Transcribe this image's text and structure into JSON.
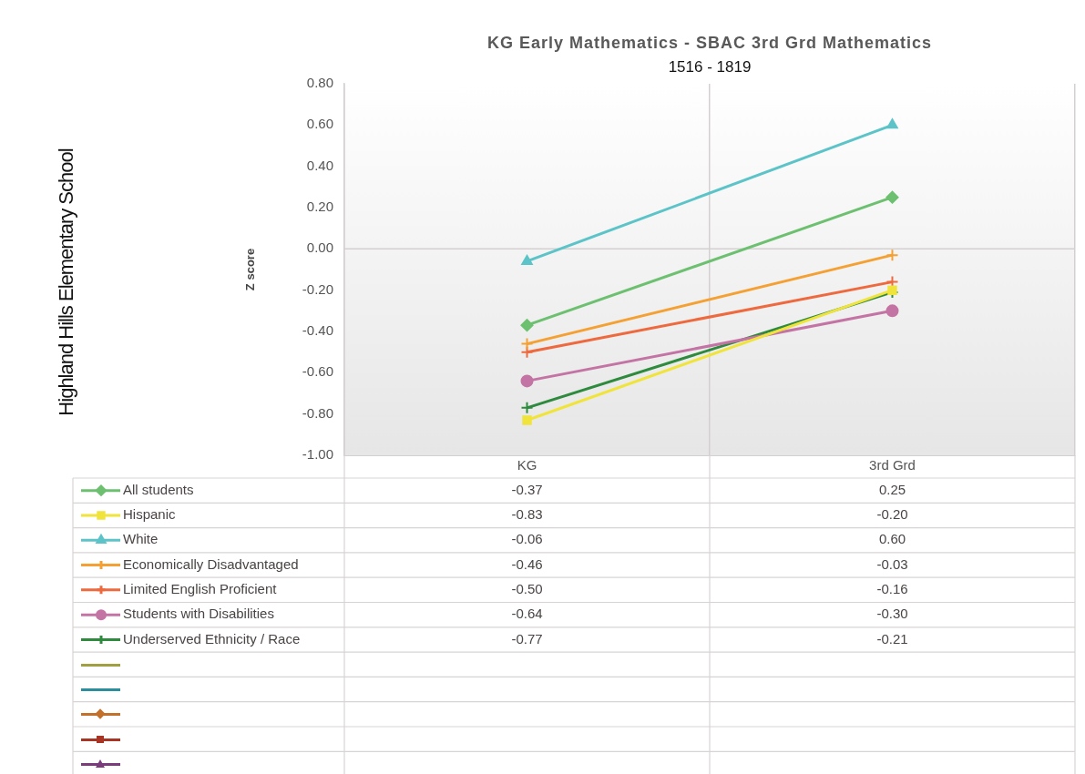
{
  "chart_data": {
    "type": "line",
    "title": "KG Early Mathematics - SBAC 3rd Grd Mathematics",
    "subtitle": "1516 - 1819",
    "ylabel": "Z score",
    "annotations": [
      "Highland Hills Elementary School"
    ],
    "categories": [
      "KG",
      "3rd Grd"
    ],
    "ylim": [
      -1,
      0.8
    ],
    "yticks": [
      {
        "value": -1,
        "label": "-1.00"
      },
      {
        "value": -0.8,
        "label": "-0.80"
      },
      {
        "value": -0.6,
        "label": "-0.60"
      },
      {
        "value": -0.4,
        "label": "-0.40"
      },
      {
        "value": -0.2,
        "label": "-0.20"
      },
      {
        "value": 0,
        "label": "0.00"
      },
      {
        "value": 0.2,
        "label": "0.20"
      },
      {
        "value": 0.4,
        "label": "0.40"
      },
      {
        "value": 0.6,
        "label": "0.60"
      },
      {
        "value": 0.8,
        "label": "0.80"
      }
    ],
    "grid": "x",
    "legend": "bottom",
    "line_style": "solid",
    "ref_lines": [
      {
        "axis": "y",
        "value": 0,
        "color": "#d4d0d0"
      }
    ],
    "series": [
      {
        "name": "All students",
        "color": "#6cc070",
        "marker": "diamond",
        "values": [
          -0.37,
          0.25
        ],
        "value_labels": [
          "-0.37",
          "0.25"
        ]
      },
      {
        "name": "Hispanic",
        "color": "#f0e43c",
        "marker": "square",
        "values": [
          -0.83,
          -0.2
        ],
        "value_labels": [
          "-0.83",
          "-0.20"
        ]
      },
      {
        "name": "White",
        "color": "#5cc4c8",
        "marker": "triangle",
        "values": [
          -0.06,
          0.6
        ],
        "value_labels": [
          "-0.06",
          "0.60"
        ]
      },
      {
        "name": "Economically Disadvantaged",
        "color": "#f5a032",
        "marker": "cross",
        "values": [
          -0.46,
          -0.03
        ],
        "value_labels": [
          "-0.46",
          "-0.03"
        ]
      },
      {
        "name": "Limited English Proficient",
        "color": "#ee6a3e",
        "marker": "cross",
        "values": [
          -0.5,
          -0.16
        ],
        "value_labels": [
          "-0.50",
          "-0.16"
        ]
      },
      {
        "name": "Students with Disabilities",
        "color": "#c474a4",
        "marker": "circle",
        "values": [
          -0.64,
          -0.3
        ],
        "value_labels": [
          "-0.64",
          "-0.30"
        ]
      },
      {
        "name": "Underserved Ethnicity / Race",
        "color": "#2e8a3c",
        "marker": "cross",
        "values": [
          -0.77,
          -0.21
        ],
        "value_labels": [
          "-0.77",
          "-0.21"
        ]
      }
    ]
  }
}
